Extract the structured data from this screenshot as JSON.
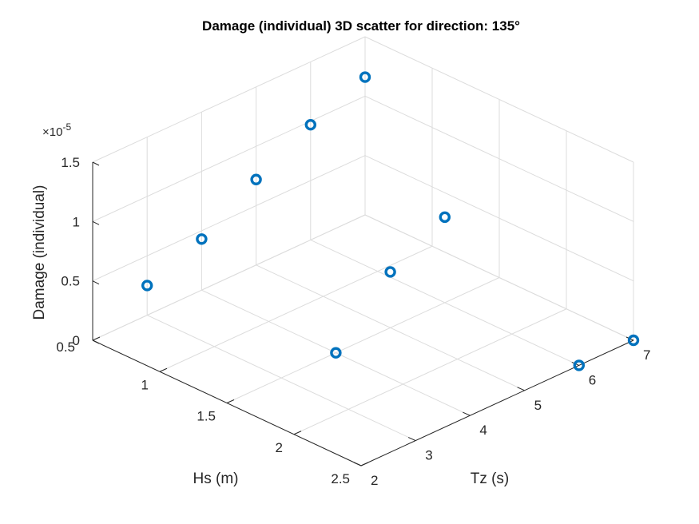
{
  "chart_data": {
    "type": "scatter",
    "title": "Damage (individual) 3D scatter for direction: 135°",
    "xlabel": "Hs (m)",
    "ylabel": "Tz (s)",
    "zlabel": "Damage (individual)",
    "xlim": [
      0.5,
      2.5
    ],
    "ylim": [
      2,
      7
    ],
    "zlim": [
      0,
      1.5
    ],
    "x_ticks": [
      "0.5",
      "1",
      "1.5",
      "2",
      "2.5"
    ],
    "y_ticks": [
      "2",
      "3",
      "4",
      "5",
      "6",
      "7"
    ],
    "z_ticks": [
      "0",
      "0.5",
      "1",
      "1.5"
    ],
    "z_multiplier": "×10",
    "z_exponent": "-5",
    "marker": "circle",
    "grid": true,
    "view": "3d",
    "color": "#0072bd",
    "points": [
      {
        "x": 0.5,
        "y": 3,
        "z": 0.25
      },
      {
        "x": 0.5,
        "y": 4,
        "z": 0.43
      },
      {
        "x": 0.5,
        "y": 5,
        "z": 0.72
      },
      {
        "x": 0.5,
        "y": 6,
        "z": 0.97
      },
      {
        "x": 0.5,
        "y": 7,
        "z": 1.16
      },
      {
        "x": 1.5,
        "y": 4,
        "z": 0.0
      },
      {
        "x": 1.5,
        "y": 5,
        "z": 0.47
      },
      {
        "x": 1.5,
        "y": 6,
        "z": 0.72
      },
      {
        "x": 2.5,
        "y": 6,
        "z": 0.0
      },
      {
        "x": 2.5,
        "y": 7,
        "z": 0.0
      }
    ]
  }
}
